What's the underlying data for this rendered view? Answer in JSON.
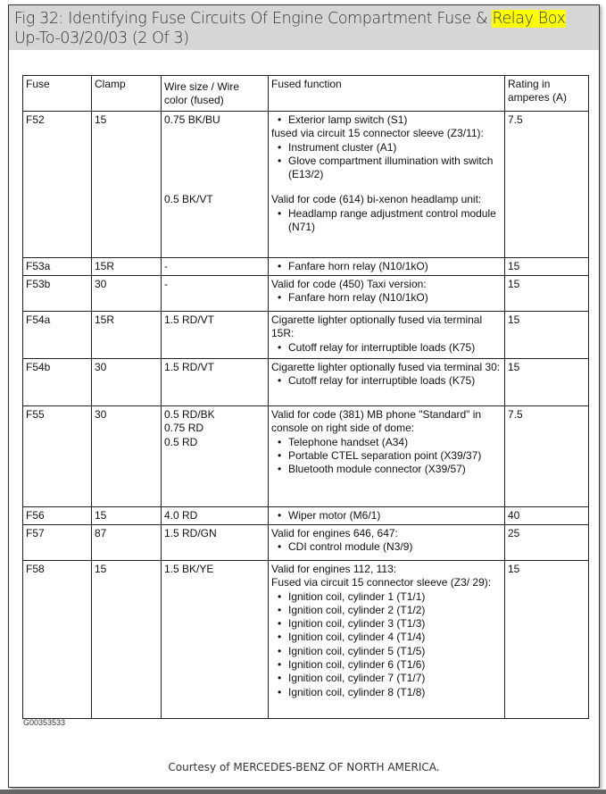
{
  "title": {
    "text": "Fig 32: Identifying Fuse Circuits Of Engine Compartment Fuse & ",
    "highlight": "Relay Box",
    "line2": "Up-To-03/20/03 (2 Of 3)",
    "highlight_color": "#ffff00"
  },
  "table": {
    "headers": [
      "Fuse",
      "Clamp",
      "Wire size / Wire color  (fused)",
      "Fused function",
      "Rating in amperes (A)"
    ],
    "rows": [
      {
        "fuse": "F52",
        "clamp": "15",
        "rating": "7.5",
        "height": 164,
        "groups": [
          {
            "wire": "0.75 BK/BU",
            "lines": [
              {
                "t": "Exterior lamp switch (S1)",
                "b": true
              },
              {
                "t": "fused via circuit 15 connector sleeve (Z3/11):",
                "b": false
              },
              {
                "t": "Instrument cluster (A1)",
                "b": true
              },
              {
                "t": "Glove compartment illumination with switch (E13/2)",
                "b": true
              }
            ]
          },
          {
            "wire": "0.5 BK/VT",
            "lines": [
              {
                "t": "Valid for code (614) bi-xenon headlamp unit:",
                "b": false
              },
              {
                "t": "Headlamp range adjustment control module (N71)",
                "b": true
              }
            ]
          }
        ]
      },
      {
        "fuse": "F53a",
        "clamp": "15R",
        "rating": "15",
        "height": 20,
        "groups": [
          {
            "wire": "-",
            "lines": [
              {
                "t": "Fanfare horn relay (N10/1kO)",
                "b": true
              }
            ]
          }
        ]
      },
      {
        "fuse": "F53b",
        "clamp": "30",
        "rating": "15",
        "height": 40,
        "groups": [
          {
            "wire": "-",
            "lines": [
              {
                "t": "Valid for code (450) Taxi version:",
                "b": false
              },
              {
                "t": "Fanfare horn relay (N10/1kO)",
                "b": true
              }
            ]
          }
        ]
      },
      {
        "fuse": "F54a",
        "clamp": "15R",
        "rating": "15",
        "height": 53,
        "groups": [
          {
            "wire": "1.5 RD/VT",
            "lines": [
              {
                "t": "Cigarette lighter optionally fused via terminal 15R:",
                "b": false
              },
              {
                "t": "Cutoff relay for interruptible loads (K75)",
                "b": true
              }
            ]
          }
        ]
      },
      {
        "fuse": "F54b",
        "clamp": "30",
        "rating": "15",
        "height": 53,
        "groups": [
          {
            "wire": "1.5 RD/VT",
            "lines": [
              {
                "t": "Cigarette lighter optionally fused via terminal 30:",
                "b": false
              },
              {
                "t": "Cutoff relay for interruptible loads (K75)",
                "b": true
              }
            ]
          }
        ]
      },
      {
        "fuse": "F55",
        "clamp": "30",
        "rating": "7.5",
        "height": 113,
        "groups": [
          {
            "wire": "0.5 RD/BK\n0.75 RD\n0.5 RD",
            "lines": [
              {
                "t": "Valid for code (381) MB phone \"Standard\" in console on right side of dome:",
                "b": false
              },
              {
                "t": "Telephone handset (A34)",
                "b": true
              },
              {
                "t": "Portable CTEL separation point (X39/37)",
                "b": true
              },
              {
                "t": "Bluetooth module connector (X39/57)",
                "b": true
              }
            ]
          }
        ]
      },
      {
        "fuse": "F56",
        "clamp": "15",
        "rating": "40",
        "height": 20,
        "groups": [
          {
            "wire": "4.0 RD",
            "lines": [
              {
                "t": "Wiper motor (M6/1)",
                "b": true
              }
            ]
          }
        ]
      },
      {
        "fuse": "F57",
        "clamp": "87",
        "rating": "25",
        "height": 40,
        "groups": [
          {
            "wire": "1.5 RD/GN",
            "lines": [
              {
                "t": "Valid for engines 646, 647:",
                "b": false
              },
              {
                "t": "CDI control module (N3/9)",
                "b": true
              }
            ]
          }
        ]
      },
      {
        "fuse": "F58",
        "clamp": "15",
        "rating": "15",
        "height": 177,
        "groups": [
          {
            "wire": "1.5 BK/YE",
            "lines": [
              {
                "t": "Valid for engines 112, 113:",
                "b": false
              },
              {
                "t": "Fused via circuit 15 connector sleeve (Z3/ 29):",
                "b": false
              },
              {
                "t": "Ignition coil, cylinder 1 (T1/1)",
                "b": true
              },
              {
                "t": "Ignition coil, cylinder 2 (T1/2)",
                "b": true
              },
              {
                "t": "Ignition coil, cylinder 3 (T1/3)",
                "b": true
              },
              {
                "t": "Ignition coil, cylinder 4 (T1/4)",
                "b": true
              },
              {
                "t": "Ignition coil, cylinder 5 (T1/5)",
                "b": true
              },
              {
                "t": "Ignition coil, cylinder 6 (T1/6)",
                "b": true
              },
              {
                "t": "Ignition coil, cylinder 7 (T1/7)",
                "b": true
              },
              {
                "t": "Ignition coil, cylinder 8 (T1/8)",
                "b": true
              }
            ]
          }
        ]
      }
    ]
  },
  "graphic_id": "G00353533",
  "courtesy": "Courtesy of MERCEDES-BENZ OF NORTH AMERICA."
}
